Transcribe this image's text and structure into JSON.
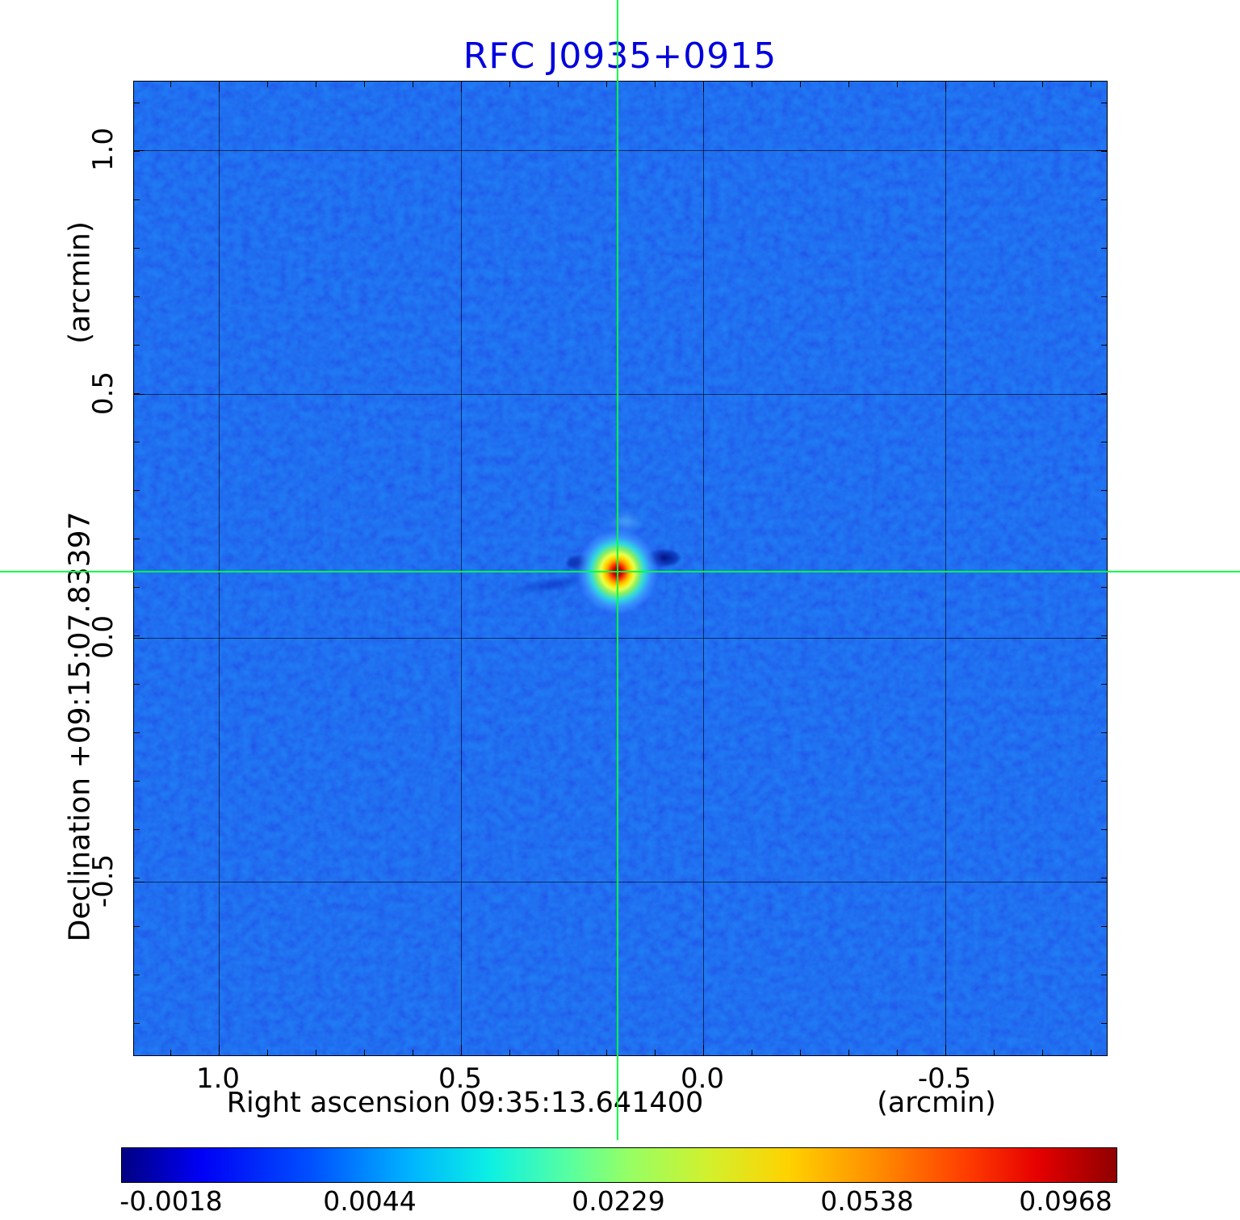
{
  "title": {
    "text": "RFC J0935+0915",
    "color": "#0000dd"
  },
  "axes": {
    "y_unit": "(arcmin)",
    "y_label": "Declination  +09:15:07.83397",
    "x_label": "Right ascension  09:35:13.641400",
    "x_unit": "(arcmin)",
    "x_ticks": [
      "1.0",
      "0.5",
      "0.0",
      "-0.5"
    ],
    "y_ticks": [
      "1.0",
      "0.5",
      "0.0",
      "-0.5"
    ]
  },
  "crosshair": {
    "color": "#00ff44",
    "ra": "09:35:13.641400",
    "dec": "+09:15:07.83397"
  },
  "colorbar": {
    "labels": [
      "-0.0018",
      "0.0044",
      "0.0229",
      "0.0538",
      "0.0968"
    ],
    "colormap": "jet",
    "colors": [
      "#000080",
      "#0000ff",
      "#00b4ff",
      "#00ffff",
      "#80ff80",
      "#ffff00",
      "#ff8000",
      "#ff0000",
      "#800000"
    ]
  },
  "chart_data": {
    "type": "heatmap",
    "title": "RFC J0935+0915",
    "xlabel": "Right ascension  09:35:13.641400  (arcmin)",
    "ylabel": "Declination  +09:15:07.83397  (arcmin)",
    "x_ticks_arcmin": [
      1.0,
      0.5,
      0.0,
      -0.5
    ],
    "y_ticks_arcmin": [
      1.0,
      0.5,
      0.0,
      -0.5
    ],
    "x_range_arcmin": [
      1.18,
      -0.83
    ],
    "y_range_arcmin": [
      -0.86,
      1.14
    ],
    "grid": true,
    "colormap": "jet",
    "colorbar_ticks": [
      -0.0018,
      0.0044,
      0.0229,
      0.0538,
      0.0968
    ],
    "value_min": -0.0018,
    "value_max": 0.0968,
    "background_level": 0.003,
    "peak_value": 0.0968,
    "source": {
      "ra": "09:35:13.641400",
      "dec": "+09:15:07.83397",
      "x_offset_arcmin": 0.175,
      "y_offset_arcmin": 0.136,
      "description": "single compact bright source (red/yellow core with cyan halo) at the green crosshair intersection, flanked by small negative (dark blue) sidelobes east and west; rest of map is low-level blue noise"
    },
    "crosshair_color": "#00ff44",
    "legend_position": "bottom colorbar"
  }
}
